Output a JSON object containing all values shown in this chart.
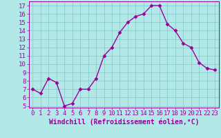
{
  "x": [
    0,
    1,
    2,
    3,
    4,
    5,
    6,
    7,
    8,
    9,
    10,
    11,
    12,
    13,
    14,
    15,
    16,
    17,
    18,
    19,
    20,
    21,
    22,
    23
  ],
  "y": [
    7.0,
    6.5,
    8.3,
    7.8,
    5.0,
    5.3,
    7.0,
    7.0,
    8.3,
    11.0,
    12.0,
    13.8,
    15.0,
    15.7,
    16.0,
    17.0,
    17.0,
    14.8,
    14.0,
    12.5,
    12.0,
    10.2,
    9.5,
    9.3
  ],
  "line_color": "#990099",
  "marker": "D",
  "markersize": 2.5,
  "linewidth": 1.0,
  "bg_color": "#b3e8e8",
  "grid_color": "#88cccc",
  "xlabel": "Windchill (Refroidissement éolien,°C)",
  "xlabel_fontsize": 7,
  "tick_fontsize": 6.5,
  "ylim": [
    4.8,
    17.5
  ],
  "yticks": [
    5,
    6,
    7,
    8,
    9,
    10,
    11,
    12,
    13,
    14,
    15,
    16,
    17
  ],
  "xlim": [
    -0.5,
    23.5
  ],
  "xticks": [
    0,
    1,
    2,
    3,
    4,
    5,
    6,
    7,
    8,
    9,
    10,
    11,
    12,
    13,
    14,
    15,
    16,
    17,
    18,
    19,
    20,
    21,
    22,
    23
  ]
}
